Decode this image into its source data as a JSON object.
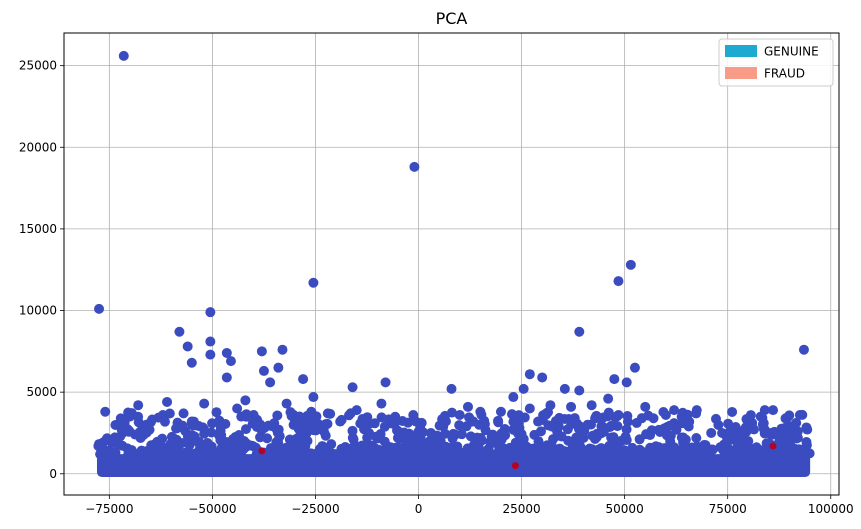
{
  "chart_data": {
    "type": "scatter",
    "title": "PCA",
    "xlabel": "",
    "ylabel": "",
    "xlim": [
      -86000,
      102000
    ],
    "ylim": [
      -1300,
      27000
    ],
    "grid": true,
    "legend_position": "top-right",
    "x_ticks": [
      -75000,
      -50000,
      -25000,
      0,
      25000,
      50000,
      75000,
      100000
    ],
    "x_tick_labels": [
      "−75000",
      "−50000",
      "−25000",
      "0",
      "25000",
      "50000",
      "75000",
      "100000"
    ],
    "y_ticks": [
      0,
      5000,
      10000,
      15000,
      20000,
      25000
    ],
    "y_tick_labels": [
      "0",
      "5000",
      "10000",
      "15000",
      "20000",
      "25000"
    ],
    "legend": [
      {
        "label": "GENUINE",
        "color": "#1ea9d1"
      },
      {
        "label": "FRAUD",
        "color": "#f99c87"
      }
    ],
    "series": [
      {
        "name": "GENUINE",
        "color": "#3b4cc0",
        "dense_band": {
          "x_range": [
            -78000,
            95000
          ],
          "y_range": [
            -200,
            1200
          ]
        },
        "points": [
          [
            -71500,
            25600
          ],
          [
            -77500,
            10100
          ],
          [
            -50500,
            9900
          ],
          [
            -25500,
            11700
          ],
          [
            -1000,
            18800
          ],
          [
            48500,
            11800
          ],
          [
            51500,
            12800
          ],
          [
            39000,
            8700
          ],
          [
            93500,
            7600
          ],
          [
            -58000,
            8700
          ],
          [
            -50500,
            8100
          ],
          [
            -56000,
            7800
          ],
          [
            -50500,
            7300
          ],
          [
            -46500,
            7400
          ],
          [
            -45500,
            6900
          ],
          [
            -55000,
            6800
          ],
          [
            -37500,
            6300
          ],
          [
            -33000,
            7600
          ],
          [
            -34000,
            6500
          ],
          [
            -28000,
            5800
          ],
          [
            -46500,
            5900
          ],
          [
            -36000,
            5600
          ],
          [
            -8000,
            5600
          ],
          [
            -16000,
            5300
          ],
          [
            8000,
            5200
          ],
          [
            25500,
            5200
          ],
          [
            27000,
            6100
          ],
          [
            30000,
            5900
          ],
          [
            35500,
            5200
          ],
          [
            39000,
            5100
          ],
          [
            47500,
            5800
          ],
          [
            50500,
            5600
          ],
          [
            52500,
            6500
          ],
          [
            -38000,
            7500
          ],
          [
            -61000,
            4400
          ],
          [
            -68000,
            4200
          ],
          [
            -76000,
            3800
          ],
          [
            -72000,
            2700
          ],
          [
            -52000,
            4300
          ],
          [
            -44000,
            4000
          ],
          [
            -40000,
            3600
          ],
          [
            -32000,
            4300
          ],
          [
            -25500,
            4700
          ],
          [
            -22000,
            3700
          ],
          [
            -15000,
            3900
          ],
          [
            -9000,
            4300
          ],
          [
            -5000,
            2200
          ],
          [
            3000,
            2500
          ],
          [
            10000,
            3600
          ],
          [
            12000,
            4100
          ],
          [
            15000,
            3800
          ],
          [
            20000,
            3800
          ],
          [
            23000,
            4700
          ],
          [
            27000,
            4000
          ],
          [
            32000,
            4200
          ],
          [
            37000,
            4100
          ],
          [
            42000,
            4200
          ],
          [
            46000,
            4600
          ],
          [
            48500,
            3600
          ],
          [
            55000,
            4100
          ],
          [
            62000,
            3900
          ],
          [
            67500,
            3900
          ],
          [
            77500,
            1800
          ],
          [
            80000,
            2000
          ],
          [
            84000,
            3900
          ],
          [
            86000,
            3900
          ],
          [
            92500,
            3600
          ],
          [
            92000,
            2600
          ],
          [
            -62000,
            3600
          ],
          [
            -57000,
            3700
          ],
          [
            -42000,
            4500
          ],
          [
            -30000,
            3300
          ],
          [
            -19000,
            3200
          ],
          [
            -12000,
            2500
          ],
          [
            6000,
            2900
          ],
          [
            18000,
            2400
          ],
          [
            29000,
            3200
          ],
          [
            41000,
            3000
          ],
          [
            57000,
            3400
          ],
          [
            64000,
            3100
          ],
          [
            71000,
            2500
          ],
          [
            -48000,
            2900
          ],
          [
            -35000,
            3100
          ],
          [
            -3000,
            1700
          ],
          [
            0,
            2100
          ],
          [
            -66000,
            3000
          ],
          [
            -26000,
            3800
          ],
          [
            -23000,
            2800
          ],
          [
            -70000,
            3500
          ],
          [
            -55000,
            3200
          ],
          [
            -43000,
            3500
          ],
          [
            34000,
            2900
          ],
          [
            44000,
            3400
          ],
          [
            60000,
            3600
          ],
          [
            88000,
            2300
          ]
        ]
      },
      {
        "name": "FRAUD",
        "color": "#b40426",
        "points": [
          [
            -38000,
            1400
          ],
          [
            23500,
            500
          ],
          [
            86000,
            1700
          ]
        ]
      }
    ]
  }
}
